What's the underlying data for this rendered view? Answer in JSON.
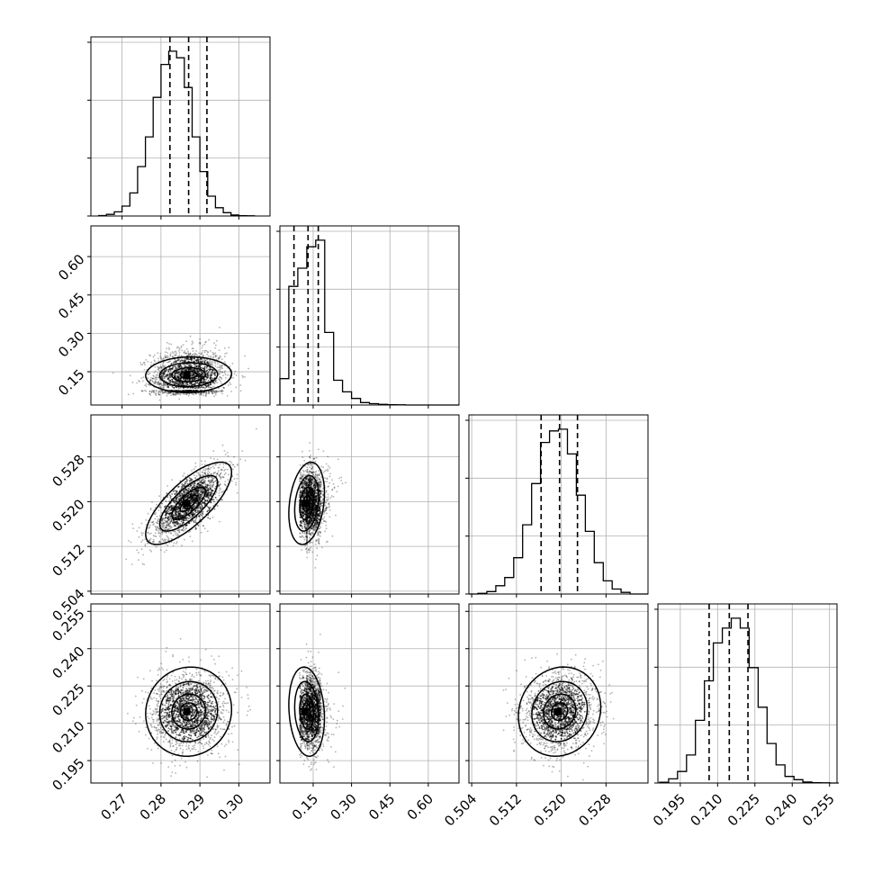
{
  "chart_data": {
    "type": "corner",
    "grid": true,
    "n_params": 4,
    "params": [
      {
        "range": [
          0.262,
          0.308
        ],
        "ticks": [
          0.27,
          0.28,
          0.29,
          0.3
        ],
        "tick_labels": [
          "0.27",
          "0.28",
          "0.29",
          "0.30"
        ],
        "quantiles": [
          0.2823,
          0.2871,
          0.2918
        ],
        "hist_bins": [
          0.264,
          0.266,
          0.268,
          0.27,
          0.272,
          0.274,
          0.276,
          0.278,
          0.28,
          0.282,
          0.284,
          0.286,
          0.288,
          0.29,
          0.292,
          0.294,
          0.296,
          0.298,
          0.3,
          0.302,
          0.304
        ],
        "hist_counts": [
          0.003,
          0.01,
          0.025,
          0.06,
          0.14,
          0.3,
          0.48,
          0.72,
          0.92,
          1.0,
          0.96,
          0.78,
          0.48,
          0.27,
          0.12,
          0.05,
          0.02,
          0.006,
          0.002,
          0.001
        ]
      },
      {
        "range": [
          0.02,
          0.72
        ],
        "ticks": [
          0.15,
          0.3,
          0.45,
          0.6
        ],
        "tick_labels": [
          "0.15",
          "0.30",
          "0.45",
          "0.60"
        ],
        "quantiles": [
          0.075,
          0.13,
          0.17
        ],
        "hist_bins": [
          0.02,
          0.055,
          0.09,
          0.125,
          0.16,
          0.195,
          0.23,
          0.265,
          0.3,
          0.335,
          0.37,
          0.405,
          0.44,
          0.475,
          0.51,
          0.545,
          0.58,
          0.615,
          0.65,
          0.685,
          0.72
        ],
        "hist_counts": [
          0.16,
          0.72,
          0.83,
          0.96,
          1.0,
          0.44,
          0.15,
          0.08,
          0.04,
          0.015,
          0.008,
          0.004,
          0.002,
          0.001,
          0.0,
          0.0,
          0.0,
          0.0,
          0.0,
          0.0
        ]
      },
      {
        "range": [
          0.5035,
          0.5355
        ],
        "ticks": [
          0.504,
          0.512,
          0.52,
          0.528
        ],
        "tick_labels": [
          "0.504",
          "0.512",
          "0.520",
          "0.528"
        ],
        "quantiles": [
          0.5164,
          0.5197,
          0.5229
        ],
        "hist_bins": [
          0.5035,
          0.5051,
          0.5067,
          0.5083,
          0.5099,
          0.5115,
          0.5131,
          0.5147,
          0.5163,
          0.5179,
          0.5195,
          0.5211,
          0.5227,
          0.5243,
          0.5259,
          0.5275,
          0.5291,
          0.5307,
          0.5323,
          0.5339,
          0.5355
        ],
        "hist_counts": [
          0.0,
          0.004,
          0.015,
          0.05,
          0.1,
          0.22,
          0.42,
          0.67,
          0.92,
          0.99,
          1.0,
          0.85,
          0.6,
          0.38,
          0.19,
          0.08,
          0.03,
          0.01,
          0.0,
          0.0
        ]
      },
      {
        "range": [
          0.186,
          0.258
        ],
        "ticks": [
          0.195,
          0.21,
          0.225,
          0.24,
          0.255
        ],
        "tick_labels": [
          "0.195",
          "0.210",
          "0.225",
          "0.240",
          "0.255"
        ],
        "quantiles": [
          0.2066,
          0.2147,
          0.2222
        ],
        "hist_bins": [
          0.1867,
          0.1903,
          0.1939,
          0.1975,
          0.2011,
          0.2047,
          0.2083,
          0.2119,
          0.2155,
          0.2191,
          0.2227,
          0.2263,
          0.2299,
          0.2335,
          0.2371,
          0.2407,
          0.2443,
          0.2479,
          0.2515,
          0.2551,
          0.2587
        ],
        "hist_counts": [
          0.005,
          0.025,
          0.07,
          0.17,
          0.38,
          0.62,
          0.85,
          0.94,
          1.0,
          0.94,
          0.7,
          0.46,
          0.24,
          0.11,
          0.04,
          0.02,
          0.006,
          0.002,
          0.001,
          0.0
        ]
      }
    ],
    "pairs": [
      {
        "row": 1,
        "col": 0,
        "mean": [
          0.2871,
          0.13
        ],
        "sd": [
          0.0048,
          0.055
        ],
        "corr": 0.05
      },
      {
        "row": 2,
        "col": 0,
        "mean": [
          0.2871,
          0.5197
        ],
        "sd": [
          0.0048,
          0.0032
        ],
        "corr": 0.75
      },
      {
        "row": 2,
        "col": 1,
        "mean": [
          0.13,
          0.5197
        ],
        "sd": [
          0.055,
          0.0032
        ],
        "corr": 0.25
      },
      {
        "row": 3,
        "col": 0,
        "mean": [
          0.2871,
          0.2147
        ],
        "sd": [
          0.0048,
          0.0078
        ],
        "corr": 0.05
      },
      {
        "row": 3,
        "col": 1,
        "mean": [
          0.13,
          0.2147
        ],
        "sd": [
          0.055,
          0.0078
        ],
        "corr": -0.15
      },
      {
        "row": 3,
        "col": 2,
        "mean": [
          0.5197,
          0.2147
        ],
        "sd": [
          0.0032,
          0.0078
        ],
        "corr": 0.1
      }
    ]
  },
  "colors": {
    "axis": "#000000",
    "grid": "#b0b0b0",
    "points": "#000000"
  }
}
